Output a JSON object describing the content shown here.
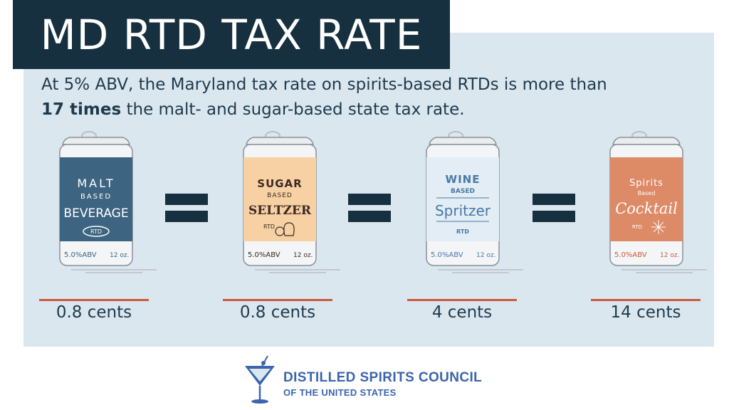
{
  "title": "MD RTD TAX RATE",
  "subtitle": {
    "line1": "At 5% ABV, the Maryland tax rate on spirits-based RTDs is more than",
    "bold": "17 times",
    "line2_rest": " the malt- and sugar-based state tax rate."
  },
  "cans": [
    {
      "top": "MALT",
      "mid": "BASED",
      "main": "BEVERAGE",
      "badge": "RTD",
      "abv": "5.0%ABV",
      "size": "12 oz.",
      "cost": "0.8 cents",
      "color": "#3d6480"
    },
    {
      "top": "SUGAR",
      "mid": "BASED",
      "main": "SELTZER",
      "badge": "RTD",
      "abv": "5.0%ABV",
      "size": "12 oz.",
      "cost": "0.8 cents",
      "color": "#f7d1a4"
    },
    {
      "top": "WINE",
      "mid": "BASED",
      "main": "Spritzer",
      "badge": "RTD",
      "abv": "5.0%ABV",
      "size": "12 oz.",
      "cost": "4 cents",
      "color": "#e3edf5"
    },
    {
      "top": "Spirits",
      "mid": "Based",
      "main": "Cocktail",
      "badge": "RTD",
      "abv": "5.0%ABV",
      "size": "12 oz.",
      "cost": "14 cents",
      "color": "#dd8a67"
    }
  ],
  "logo": {
    "name": "DISTILLED SPIRITS COUNCIL",
    "sub": "OF THE UNITED STATES",
    "icon": "martini-glass-icon",
    "brand_color": "#3a64ad"
  },
  "colors": {
    "navy": "#16303f",
    "panel": "#dbe7ef",
    "accent": "#c95c3b"
  }
}
